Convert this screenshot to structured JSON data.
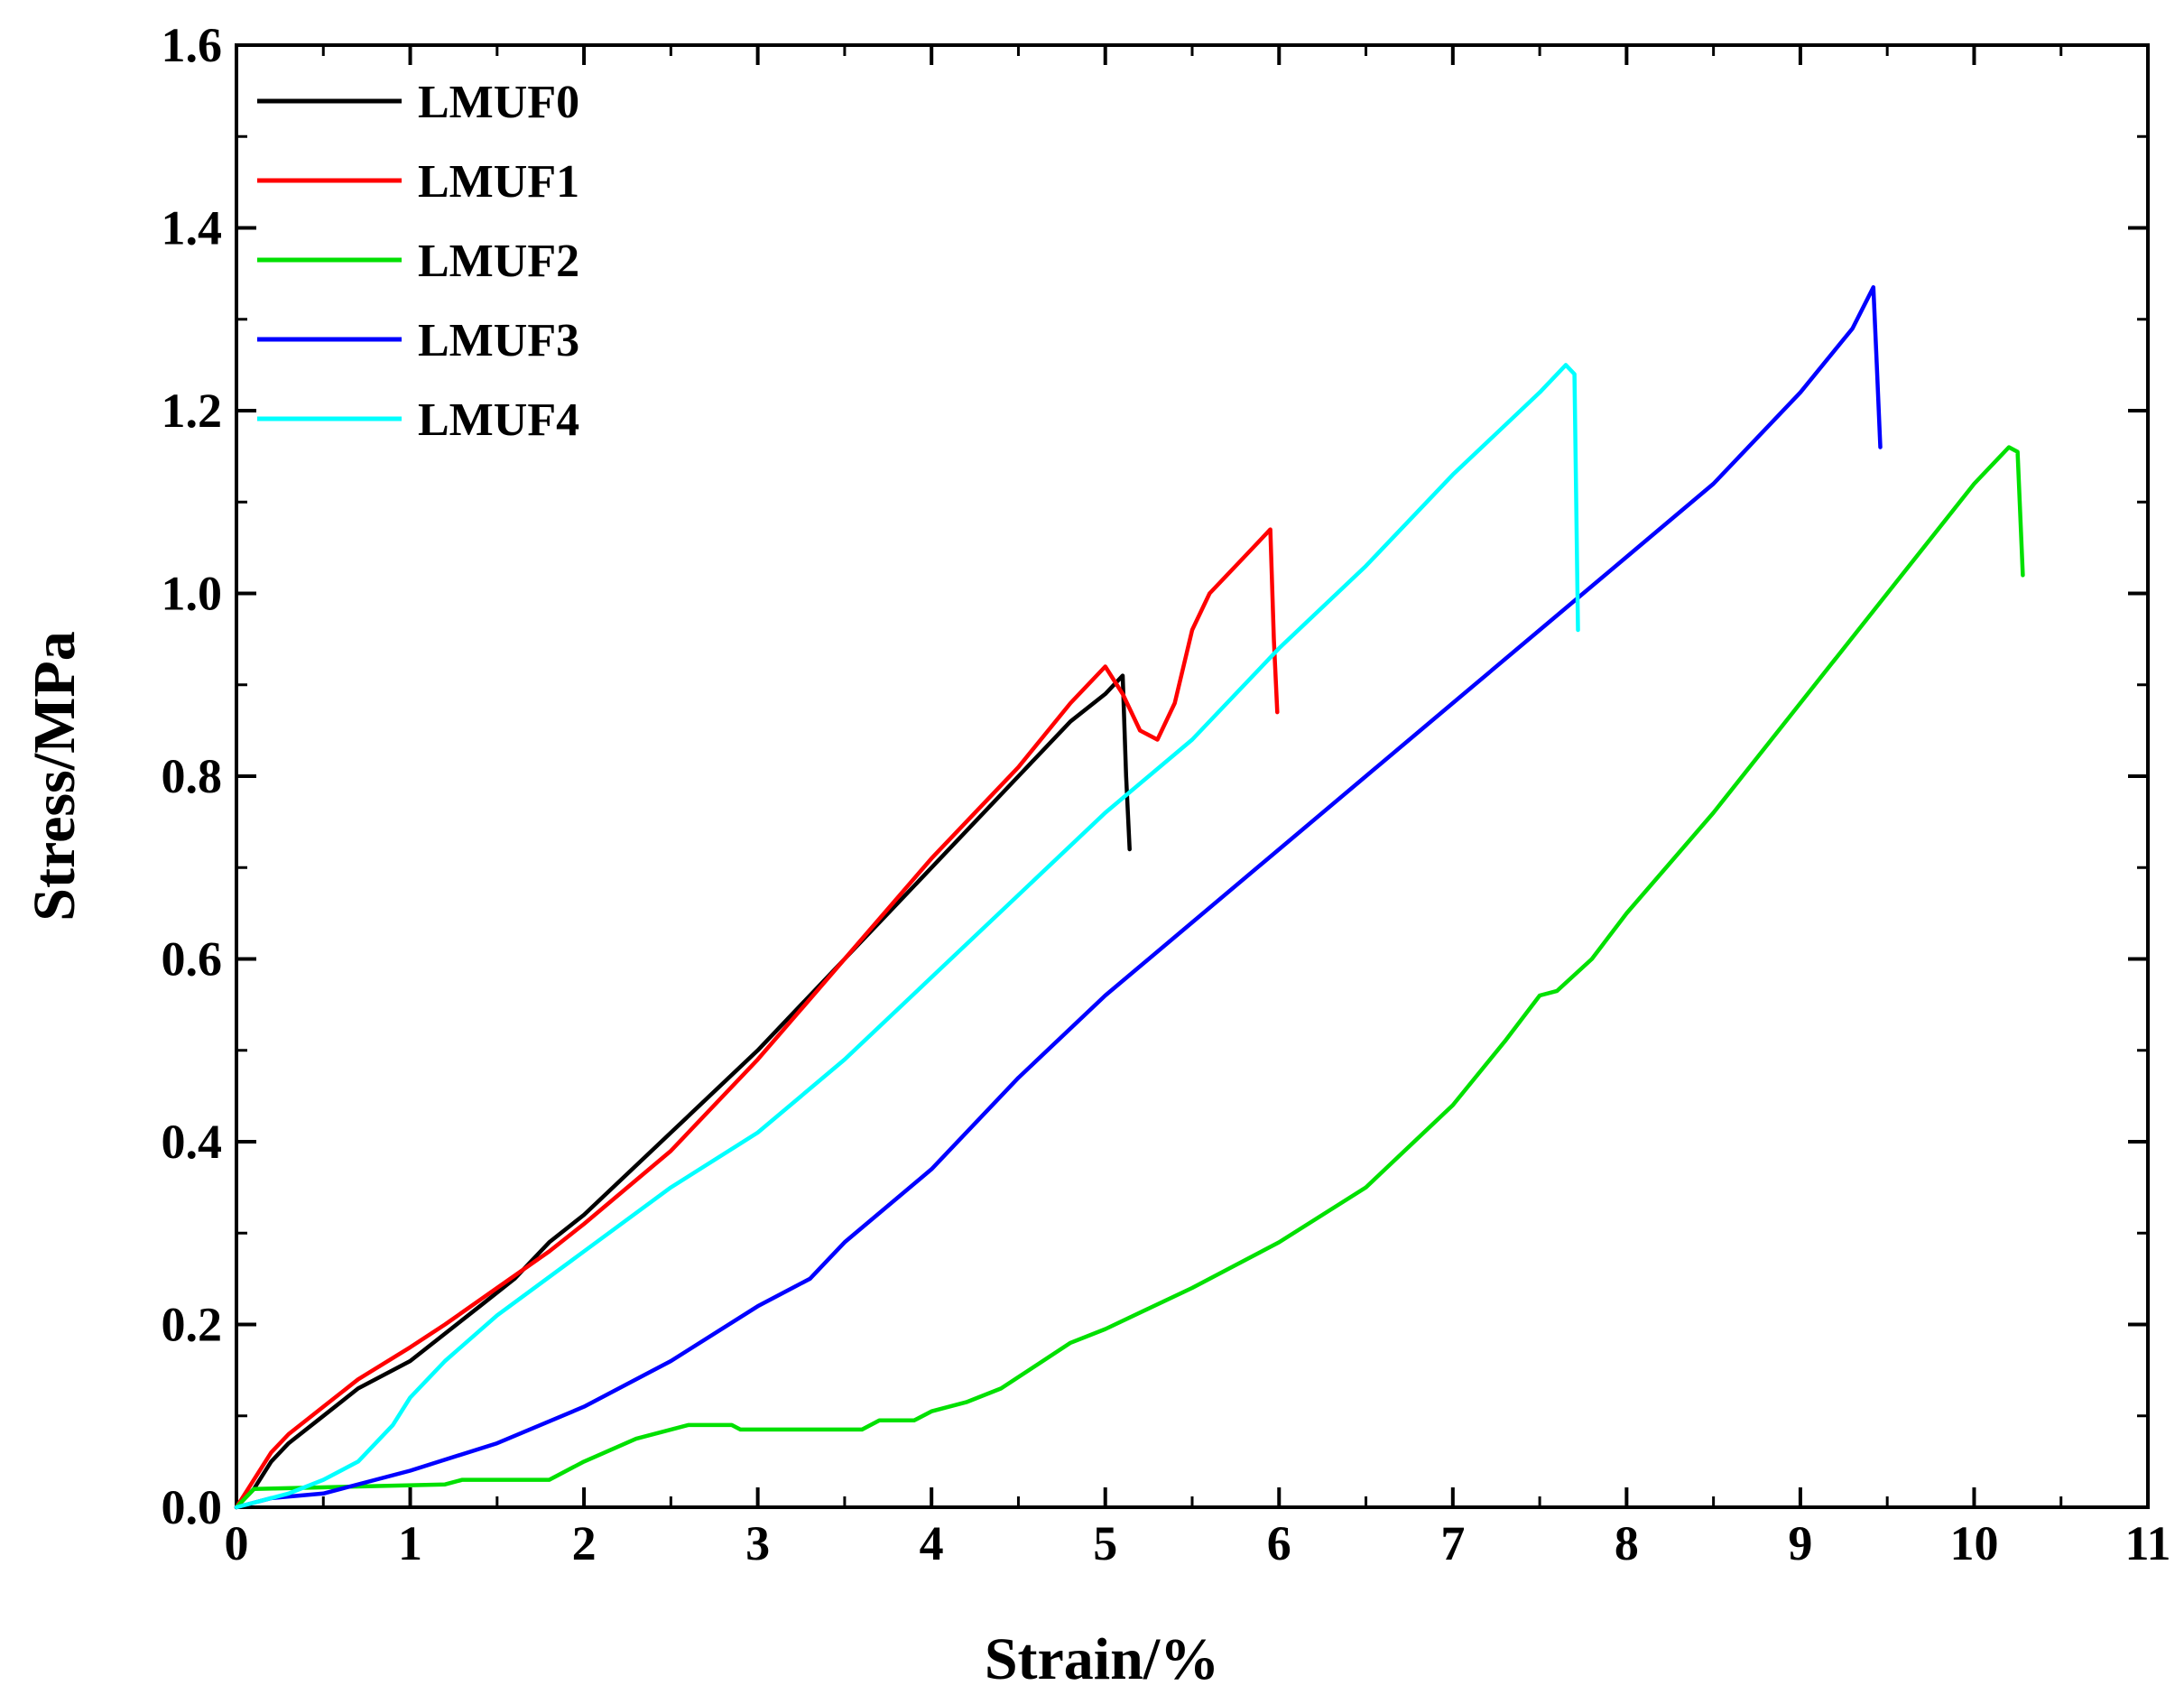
{
  "chart_data": {
    "type": "line",
    "title": "",
    "xlabel": "Strain/%",
    "ylabel": "Stress/MPa",
    "xlim": [
      0,
      11
    ],
    "ylim": [
      0,
      1.6
    ],
    "x_ticks": [
      0,
      1,
      2,
      3,
      4,
      5,
      6,
      7,
      8,
      9,
      10,
      11
    ],
    "x_tick_labels": [
      "0",
      "1",
      "2",
      "3",
      "4",
      "5",
      "6",
      "7",
      "8",
      "9",
      "10",
      "11"
    ],
    "y_ticks": [
      0,
      0.2,
      0.4,
      0.6,
      0.8,
      1.0,
      1.2,
      1.4,
      1.6
    ],
    "y_tick_labels": [
      "0.0",
      "0.2",
      "0.4",
      "0.6",
      "0.8",
      "1.0",
      "1.2",
      "1.4",
      "1.6"
    ],
    "legend_position": "top-left",
    "grid": false,
    "series": [
      {
        "name": "LMUF0",
        "color": "#000000",
        "points": [
          [
            0,
            0
          ],
          [
            0.1,
            0.02
          ],
          [
            0.2,
            0.05
          ],
          [
            0.3,
            0.07
          ],
          [
            0.5,
            0.1
          ],
          [
            0.7,
            0.13
          ],
          [
            0.9,
            0.15
          ],
          [
            1.0,
            0.16
          ],
          [
            1.2,
            0.19
          ],
          [
            1.4,
            0.22
          ],
          [
            1.6,
            0.25
          ],
          [
            1.8,
            0.29
          ],
          [
            2.0,
            0.32
          ],
          [
            2.5,
            0.41
          ],
          [
            3.0,
            0.5
          ],
          [
            3.5,
            0.6
          ],
          [
            4.0,
            0.7
          ],
          [
            4.5,
            0.8
          ],
          [
            4.8,
            0.86
          ],
          [
            5.0,
            0.89
          ],
          [
            5.1,
            0.91
          ],
          [
            5.12,
            0.8
          ],
          [
            5.14,
            0.72
          ]
        ]
      },
      {
        "name": "LMUF1",
        "color": "#ff0000",
        "points": [
          [
            0,
            0
          ],
          [
            0.1,
            0.03
          ],
          [
            0.2,
            0.06
          ],
          [
            0.3,
            0.08
          ],
          [
            0.5,
            0.11
          ],
          [
            0.7,
            0.14
          ],
          [
            1.0,
            0.175
          ],
          [
            1.2,
            0.2
          ],
          [
            1.5,
            0.24
          ],
          [
            1.8,
            0.28
          ],
          [
            2.0,
            0.31
          ],
          [
            2.5,
            0.39
          ],
          [
            3.0,
            0.49
          ],
          [
            3.5,
            0.6
          ],
          [
            4.0,
            0.71
          ],
          [
            4.5,
            0.81
          ],
          [
            4.8,
            0.88
          ],
          [
            5.0,
            0.92
          ],
          [
            5.1,
            0.89
          ],
          [
            5.2,
            0.85
          ],
          [
            5.3,
            0.84
          ],
          [
            5.4,
            0.88
          ],
          [
            5.5,
            0.96
          ],
          [
            5.6,
            1.0
          ],
          [
            5.8,
            1.04
          ],
          [
            5.95,
            1.07
          ],
          [
            5.97,
            0.95
          ],
          [
            5.99,
            0.87
          ]
        ]
      },
      {
        "name": "LMUF2",
        "color": "#00e000",
        "points": [
          [
            0,
            0
          ],
          [
            0.1,
            0.02
          ],
          [
            1.2,
            0.025
          ],
          [
            1.3,
            0.03
          ],
          [
            1.8,
            0.03
          ],
          [
            2.0,
            0.05
          ],
          [
            2.3,
            0.075
          ],
          [
            2.6,
            0.09
          ],
          [
            2.85,
            0.09
          ],
          [
            2.9,
            0.085
          ],
          [
            3.6,
            0.085
          ],
          [
            3.7,
            0.095
          ],
          [
            3.9,
            0.095
          ],
          [
            4.0,
            0.105
          ],
          [
            4.2,
            0.115
          ],
          [
            4.4,
            0.13
          ],
          [
            4.6,
            0.155
          ],
          [
            4.8,
            0.18
          ],
          [
            5.0,
            0.195
          ],
          [
            5.5,
            0.24
          ],
          [
            6.0,
            0.29
          ],
          [
            6.5,
            0.35
          ],
          [
            7.0,
            0.44
          ],
          [
            7.3,
            0.51
          ],
          [
            7.5,
            0.56
          ],
          [
            7.6,
            0.565
          ],
          [
            7.8,
            0.6
          ],
          [
            8.0,
            0.65
          ],
          [
            8.5,
            0.76
          ],
          [
            9.0,
            0.88
          ],
          [
            9.5,
            1.0
          ],
          [
            10.0,
            1.12
          ],
          [
            10.2,
            1.16
          ],
          [
            10.25,
            1.155
          ],
          [
            10.28,
            1.02
          ]
        ]
      },
      {
        "name": "LMUF3",
        "color": "#0000ff",
        "points": [
          [
            0,
            0
          ],
          [
            0.2,
            0.01
          ],
          [
            0.5,
            0.015
          ],
          [
            1.0,
            0.04
          ],
          [
            1.5,
            0.07
          ],
          [
            2.0,
            0.11
          ],
          [
            2.5,
            0.16
          ],
          [
            3.0,
            0.22
          ],
          [
            3.2,
            0.24
          ],
          [
            3.3,
            0.25
          ],
          [
            3.5,
            0.29
          ],
          [
            4.0,
            0.37
          ],
          [
            4.5,
            0.47
          ],
          [
            5.0,
            0.56
          ],
          [
            5.5,
            0.64
          ],
          [
            6.0,
            0.72
          ],
          [
            6.5,
            0.8
          ],
          [
            7.0,
            0.88
          ],
          [
            7.5,
            0.96
          ],
          [
            8.0,
            1.04
          ],
          [
            8.5,
            1.12
          ],
          [
            9.0,
            1.22
          ],
          [
            9.3,
            1.29
          ],
          [
            9.42,
            1.335
          ],
          [
            9.44,
            1.25
          ],
          [
            9.46,
            1.16
          ]
        ]
      },
      {
        "name": "LMUF4",
        "color": "#00ffff",
        "points": [
          [
            0,
            0
          ],
          [
            0.3,
            0.015
          ],
          [
            0.5,
            0.03
          ],
          [
            0.7,
            0.05
          ],
          [
            0.9,
            0.09
          ],
          [
            1.0,
            0.12
          ],
          [
            1.2,
            0.16
          ],
          [
            1.5,
            0.21
          ],
          [
            2.0,
            0.28
          ],
          [
            2.5,
            0.35
          ],
          [
            3.0,
            0.41
          ],
          [
            3.5,
            0.49
          ],
          [
            4.0,
            0.58
          ],
          [
            4.5,
            0.67
          ],
          [
            5.0,
            0.76
          ],
          [
            5.5,
            0.84
          ],
          [
            6.0,
            0.94
          ],
          [
            6.5,
            1.03
          ],
          [
            7.0,
            1.13
          ],
          [
            7.5,
            1.22
          ],
          [
            7.65,
            1.25
          ],
          [
            7.7,
            1.24
          ],
          [
            7.72,
            0.96
          ]
        ]
      }
    ]
  }
}
